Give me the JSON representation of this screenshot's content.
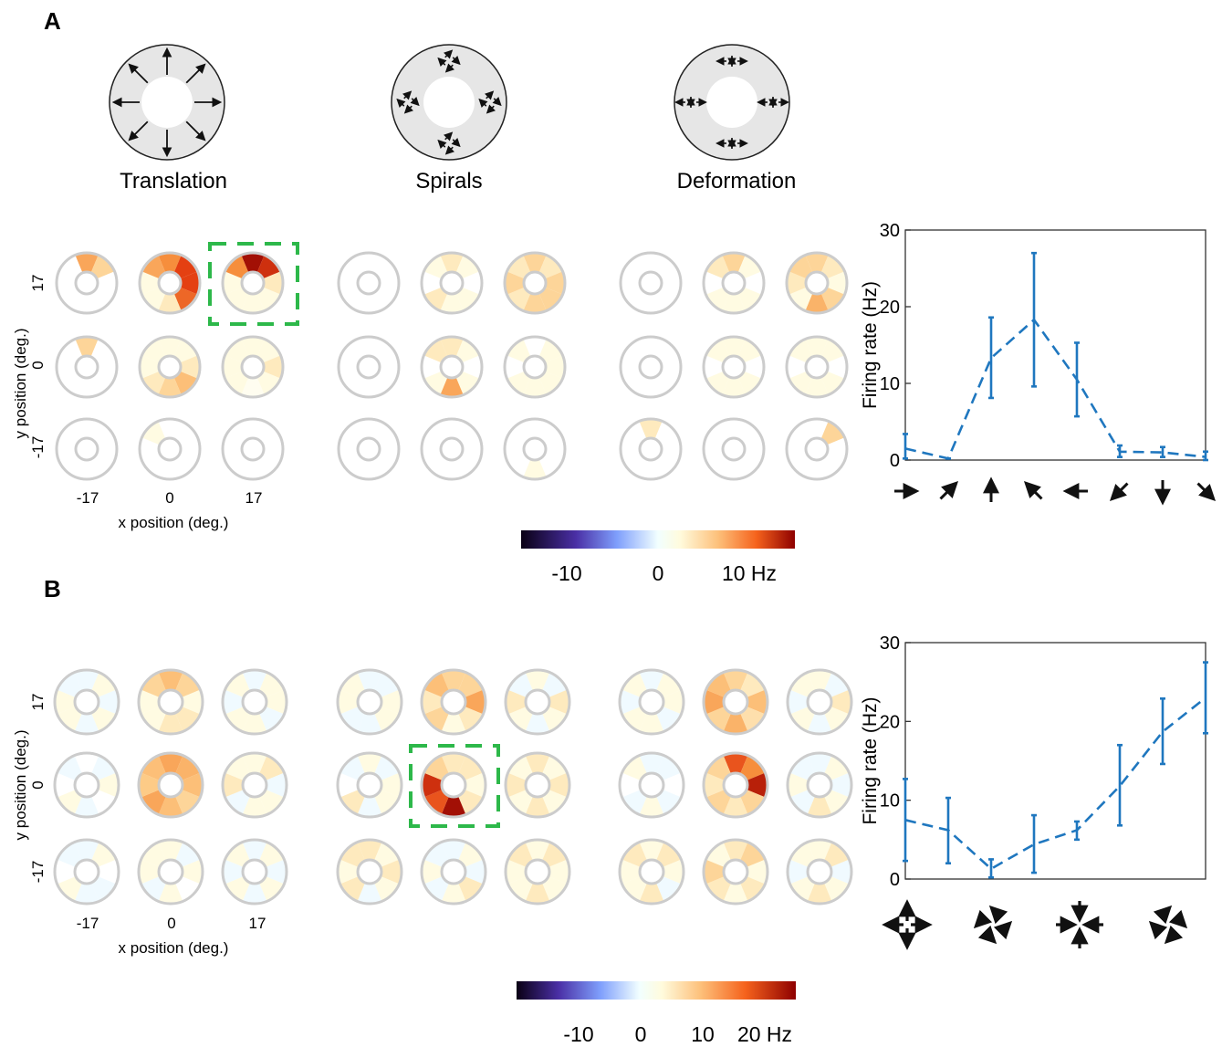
{
  "panels": [
    {
      "letter": "A",
      "categories": [
        "Translation",
        "Spirals",
        "Deformation"
      ],
      "grid": {
        "y_label": "y position (deg.)",
        "x_label": "x position (deg.)",
        "y_ticks": [
          "17",
          "0",
          "-17"
        ],
        "x_ticks": [
          "-17",
          "0",
          "17"
        ]
      },
      "colorbar": {
        "labels": [
          {
            "text": "-10",
            "value": -10
          },
          {
            "text": "0",
            "value": 0
          },
          {
            "text": "10 Hz",
            "value": 10
          }
        ],
        "range": [
          -15,
          15
        ]
      },
      "highlight": {
        "group": 0,
        "row": 0,
        "col": 2
      },
      "chart_data": {
        "type": "line",
        "ylabel": "Firing rate (Hz)",
        "ylim": [
          0,
          30
        ],
        "yticks": [
          0,
          10,
          20,
          30
        ],
        "x_tick_icons": [
          "arrow-right-icon",
          "arrow-up-right-icon",
          "arrow-up-icon",
          "arrow-up-left-icon",
          "arrow-left-icon",
          "arrow-down-left-icon",
          "arrow-down-icon",
          "arrow-down-right-icon"
        ],
        "series": [
          {
            "values": [
              1.5,
              0.2,
              13.3,
              18.3,
              10.5,
              1.1,
              1.0,
              0.4
            ],
            "err_low": [
              0.2,
              0.2,
              8.1,
              9.6,
              5.7,
              0.4,
              0.4,
              0.0
            ],
            "err_high": [
              3.4,
              0.2,
              18.6,
              27.0,
              15.3,
              1.9,
              1.7,
              1.1
            ],
            "color": "#1f77bf",
            "style": "dashed"
          }
        ]
      },
      "rings": [
        [
          [
            [
              0.5,
              0.3,
              0,
              0,
              0,
              0,
              0,
              0
            ],
            [
              0.6,
              0.8,
              0.8,
              0.7,
              0.2,
              0.1,
              0.1,
              0.5
            ],
            [
              0.95,
              0.85,
              0.2,
              0.1,
              0.1,
              0.1,
              0.1,
              0.6
            ]
          ],
          [
            [
              0.3,
              0,
              0,
              0,
              0,
              0,
              0,
              0
            ],
            [
              0.1,
              0.1,
              0.2,
              0.4,
              0.3,
              0.2,
              0.1,
              0.1
            ],
            [
              0.1,
              0.1,
              0.2,
              0.1,
              0.05,
              0.1,
              0.1,
              0.1
            ]
          ],
          [
            [
              0,
              0,
              0,
              0,
              0,
              0,
              0,
              0
            ],
            [
              0,
              0,
              0,
              0,
              0,
              0,
              0,
              0.1
            ],
            [
              0,
              0,
              0,
              0,
              0,
              0,
              0,
              0
            ]
          ]
        ],
        [
          [
            [
              0,
              0,
              0,
              0,
              0,
              0,
              0,
              0
            ],
            [
              0.2,
              0.1,
              0,
              0.1,
              0.1,
              0.2,
              0,
              0.1
            ],
            [
              0.3,
              0.2,
              0.3,
              0.3,
              0.3,
              0.2,
              0.3,
              0.2
            ]
          ],
          [
            [
              0,
              0,
              0,
              0,
              0,
              0,
              0,
              0
            ],
            [
              0.2,
              0.1,
              0,
              0.1,
              0.5,
              0.1,
              0,
              0.2
            ],
            [
              0,
              0.1,
              0.1,
              0.1,
              0.1,
              0.1,
              0,
              0.1
            ]
          ],
          [
            [
              0,
              0,
              0,
              0,
              0,
              0,
              0,
              0
            ],
            [
              0,
              0,
              0,
              0,
              0,
              0,
              0,
              0
            ],
            [
              0,
              0,
              0,
              0,
              0.1,
              0,
              0,
              0
            ]
          ]
        ],
        [
          [
            [
              0,
              0,
              0,
              0,
              0,
              0,
              0,
              0
            ],
            [
              0.3,
              0.1,
              0,
              0.1,
              0.1,
              0.1,
              0,
              0.2
            ],
            [
              0.3,
              0.2,
              0.1,
              0.3,
              0.45,
              0.1,
              0.2,
              0.3
            ]
          ],
          [
            [
              0,
              0,
              0,
              0,
              0,
              0,
              0,
              0
            ],
            [
              0.1,
              0.1,
              0,
              0.1,
              0.1,
              0.1,
              0,
              0.1
            ],
            [
              0.1,
              0.1,
              0,
              0.1,
              0.1,
              0.1,
              0,
              0.1
            ]
          ],
          [
            [
              0.2,
              0,
              0,
              0,
              0,
              0,
              0,
              0
            ],
            [
              0,
              0,
              0,
              0,
              0,
              0,
              0,
              0
            ],
            [
              0,
              0.3,
              0,
              0,
              0,
              0,
              0,
              0
            ]
          ]
        ]
      ]
    },
    {
      "letter": "B",
      "grid": {
        "y_label": "y position (deg.)",
        "x_label": "x position (deg.)",
        "y_ticks": [
          "17",
          "0",
          "-17"
        ],
        "x_ticks": [
          "-17",
          "0",
          "17"
        ]
      },
      "colorbar": {
        "labels": [
          {
            "text": "-10",
            "value": -10
          },
          {
            "text": "0",
            "value": 0
          },
          {
            "text": "10",
            "value": 10
          },
          {
            "text": "20 Hz",
            "value": 20
          }
        ],
        "range": [
          -20,
          25
        ]
      },
      "highlight": {
        "group": 1,
        "row": 1,
        "col": 1
      },
      "chart_data": {
        "type": "line",
        "ylabel": "Firing rate (Hz)",
        "ylim": [
          0,
          30
        ],
        "yticks": [
          0,
          10,
          20,
          30
        ],
        "x_tick_icons": [
          "expansion-icon",
          "spiral-ccw-icon",
          "contraction-icon",
          "spiral-cw-icon"
        ],
        "series": [
          {
            "values": [
              7.5,
              6.2,
              1.3,
              4.4,
              6.2,
              11.8,
              18.7,
              23.0
            ],
            "err_low": [
              2.3,
              2.0,
              0.2,
              0.8,
              5.0,
              6.8,
              14.6,
              18.5
            ],
            "err_high": [
              12.7,
              10.3,
              2.5,
              8.1,
              7.3,
              17.0,
              22.9,
              27.5
            ],
            "color": "#1f77bf",
            "style": "dashed"
          }
        ]
      },
      "rings": [
        [
          [
            [
              -0.1,
              0.1,
              -0.1,
              0.1,
              -0.1,
              0.1,
              0.1,
              -0.1
            ],
            [
              0.4,
              0.3,
              0.1,
              0.2,
              0.2,
              0.1,
              0.1,
              0.3
            ],
            [
              -0.1,
              0.1,
              0.1,
              -0.1,
              0.1,
              0.1,
              -0.1,
              0.1
            ]
          ],
          [
            [
              0,
              -0.1,
              0.1,
              0,
              -0.1,
              0.1,
              0,
              -0.1
            ],
            [
              0.5,
              0.45,
              0.4,
              0.3,
              0.4,
              0.5,
              0.35,
              0.4
            ],
            [
              0.1,
              0.2,
              -0.1,
              0.1,
              0.1,
              -0.1,
              0.2,
              0.1
            ]
          ],
          [
            [
              -0.1,
              0.1,
              0,
              -0.1,
              -0.1,
              0.1,
              0,
              -0.1
            ],
            [
              0.1,
              -0.1,
              0.1,
              0,
              0.1,
              -0.1,
              0.1,
              0.1
            ],
            [
              -0.1,
              0.1,
              -0.1,
              0.1,
              -0.1,
              0.1,
              -0.1,
              0.1
            ]
          ]
        ],
        [
          [
            [
              -0.1,
              -0.1,
              0.1,
              0.1,
              -0.1,
              -0.1,
              0.1,
              0.1
            ],
            [
              0.3,
              0.3,
              0.5,
              0.2,
              0.1,
              0.3,
              0.2,
              0.4
            ],
            [
              0.1,
              -0.1,
              0.2,
              0.1,
              -0.1,
              0.1,
              0.2,
              -0.1
            ]
          ],
          [
            [
              0.1,
              -0.1,
              0.1,
              0.1,
              -0.1,
              0.2,
              0,
              -0.1
            ],
            [
              0.2,
              0.2,
              0.1,
              0.2,
              0.95,
              0.75,
              0.85,
              0.3
            ],
            [
              0.2,
              0.1,
              0.2,
              0.1,
              0.2,
              0.1,
              0.2,
              0.1
            ]
          ],
          [
            [
              0.2,
              0.1,
              0.2,
              0.1,
              -0.1,
              0.2,
              0.1,
              0.2
            ],
            [
              -0.1,
              0.1,
              -0.1,
              0.2,
              0.1,
              -0.1,
              0.1,
              -0.1
            ],
            [
              0.1,
              0.2,
              0.1,
              0.1,
              0.2,
              0.1,
              0.1,
              0.2
            ]
          ]
        ],
        [
          [
            [
              -0.1,
              0.1,
              0.1,
              -0.1,
              0.1,
              0.1,
              -0.1,
              0.1
            ],
            [
              0.3,
              0.2,
              0.4,
              0.25,
              0.45,
              0.3,
              0.5,
              0.4
            ],
            [
              0.1,
              -0.1,
              0.2,
              0.1,
              -0.1,
              0.1,
              -0.1,
              0.1
            ]
          ],
          [
            [
              -0.1,
              -0.1,
              0,
              -0.1,
              0.1,
              -0.1,
              0,
              0.1
            ],
            [
              0.75,
              0.6,
              0.9,
              0.3,
              0.2,
              0.3,
              0.2,
              0.3
            ],
            [
              -0.1,
              0.1,
              -0.1,
              0.1,
              0.2,
              -0.1,
              0.1,
              -0.1
            ]
          ],
          [
            [
              0.1,
              0.2,
              0.1,
              -0.1,
              0.2,
              0.1,
              0.1,
              0.2
            ],
            [
              0.2,
              0.3,
              0.1,
              0.2,
              0.1,
              0.2,
              0.3,
              0.1
            ],
            [
              0.1,
              0.2,
              -0.1,
              0.1,
              0.2,
              0.1,
              -0.1,
              0.1
            ]
          ]
        ]
      ]
    }
  ]
}
